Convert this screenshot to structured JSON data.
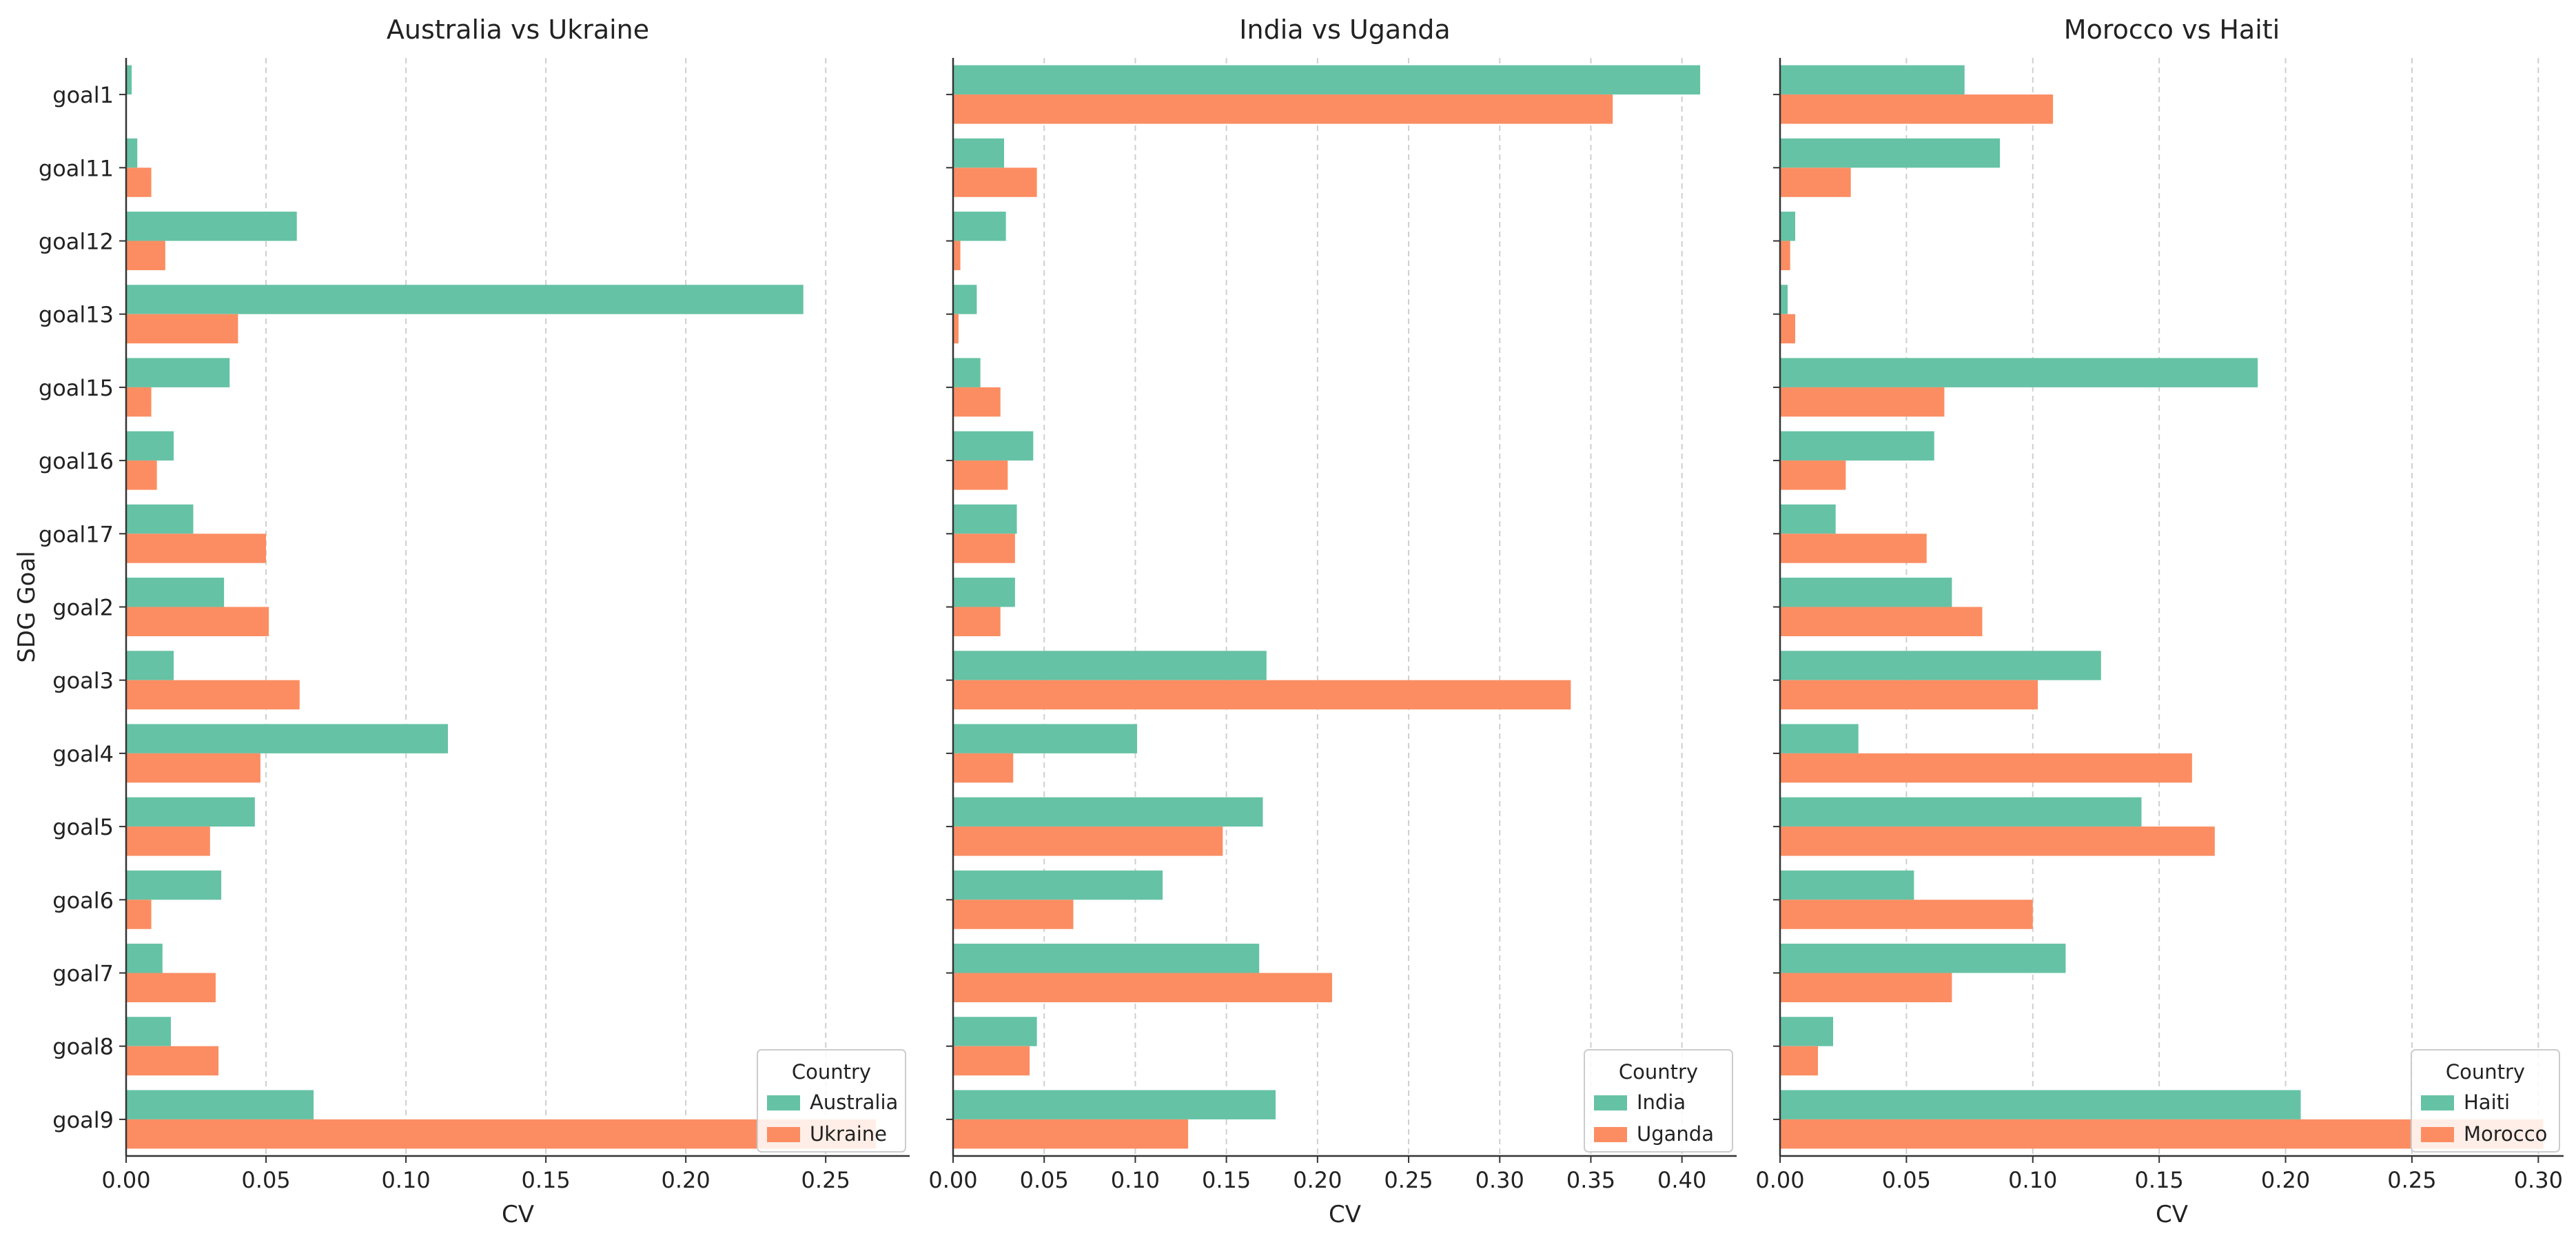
{
  "chart_data": [
    {
      "type": "bar",
      "orientation": "horizontal",
      "title": "Australia vs Ukraine",
      "xlabel": "CV",
      "ylabel": "SDG Goal",
      "xlim": [
        0,
        0.28
      ],
      "xticks": [
        0.0,
        0.05,
        0.1,
        0.15,
        0.2,
        0.25
      ],
      "xtick_labels": [
        "0.00",
        "0.05",
        "0.10",
        "0.15",
        "0.20",
        "0.25"
      ],
      "categories": [
        "goal1",
        "goal11",
        "goal12",
        "goal13",
        "goal15",
        "goal16",
        "goal17",
        "goal2",
        "goal3",
        "goal4",
        "goal5",
        "goal6",
        "goal7",
        "goal8",
        "goal9"
      ],
      "series": [
        {
          "name": "Australia",
          "values": [
            0.002,
            0.004,
            0.061,
            0.242,
            0.037,
            0.017,
            0.024,
            0.035,
            0.017,
            0.115,
            0.046,
            0.034,
            0.013,
            0.016,
            0.067
          ]
        },
        {
          "name": "Ukraine",
          "values": [
            0,
            0.009,
            0.014,
            0.04,
            0.009,
            0.011,
            0.05,
            0.051,
            0.062,
            0.048,
            0.03,
            0.009,
            0.032,
            0.033,
            0.268
          ]
        }
      ],
      "legend": {
        "title": "Country",
        "position": "lower-right"
      },
      "grid": "x-dashed"
    },
    {
      "type": "bar",
      "orientation": "horizontal",
      "title": "India vs Uganda",
      "xlabel": "CV",
      "ylabel": "",
      "xlim": [
        0,
        0.43
      ],
      "xticks": [
        0.0,
        0.05,
        0.1,
        0.15,
        0.2,
        0.25,
        0.3,
        0.35,
        0.4
      ],
      "xtick_labels": [
        "0.00",
        "0.05",
        "0.10",
        "0.15",
        "0.20",
        "0.25",
        "0.30",
        "0.35",
        "0.40"
      ],
      "categories": [
        "goal1",
        "goal11",
        "goal12",
        "goal13",
        "goal15",
        "goal16",
        "goal17",
        "goal2",
        "goal3",
        "goal4",
        "goal5",
        "goal6",
        "goal7",
        "goal8",
        "goal9"
      ],
      "series": [
        {
          "name": "India",
          "values": [
            0.41,
            0.028,
            0.029,
            0.013,
            0.015,
            0.044,
            0.035,
            0.034,
            0.172,
            0.101,
            0.17,
            0.115,
            0.168,
            0.046,
            0.177
          ]
        },
        {
          "name": "Uganda",
          "values": [
            0.362,
            0.046,
            0.004,
            0.003,
            0.026,
            0.03,
            0.034,
            0.026,
            0.339,
            0.033,
            0.148,
            0.066,
            0.208,
            0.042,
            0.129
          ]
        }
      ],
      "legend": {
        "title": "Country",
        "position": "lower-right"
      },
      "grid": "x-dashed"
    },
    {
      "type": "bar",
      "orientation": "horizontal",
      "title": "Morocco vs Haiti",
      "xlabel": "CV",
      "ylabel": "",
      "xlim": [
        0,
        0.31
      ],
      "xticks": [
        0.0,
        0.05,
        0.1,
        0.15,
        0.2,
        0.25,
        0.3
      ],
      "xtick_labels": [
        "0.00",
        "0.05",
        "0.10",
        "0.15",
        "0.20",
        "0.25",
        "0.30"
      ],
      "categories": [
        "goal1",
        "goal11",
        "goal12",
        "goal13",
        "goal15",
        "goal16",
        "goal17",
        "goal2",
        "goal3",
        "goal4",
        "goal5",
        "goal6",
        "goal7",
        "goal8",
        "goal9"
      ],
      "series": [
        {
          "name": "Haiti",
          "values": [
            0.073,
            0.087,
            0.006,
            0.003,
            0.189,
            0.061,
            0.022,
            0.068,
            0.127,
            0.031,
            0.143,
            0.053,
            0.113,
            0.021,
            0.206
          ]
        },
        {
          "name": "Morocco",
          "values": [
            0.108,
            0.028,
            0.004,
            0.006,
            0.065,
            0.026,
            0.058,
            0.08,
            0.102,
            0.163,
            0.172,
            0.1,
            0.068,
            0.015,
            0.302
          ]
        }
      ],
      "legend": {
        "title": "Country",
        "position": "lower-right"
      },
      "grid": "x-dashed"
    }
  ],
  "colors": {
    "series1": "#66c2a5",
    "series2": "#fc8d62",
    "grid": "#cfcfcf",
    "axis": "#333333"
  }
}
